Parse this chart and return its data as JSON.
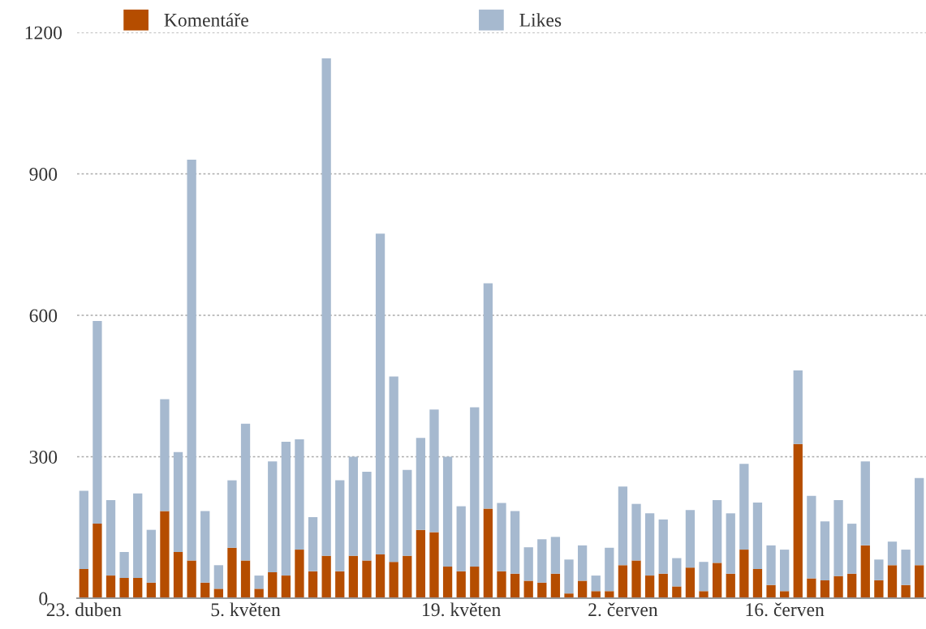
{
  "chart_data": {
    "type": "bar",
    "stacked": true,
    "categories": [
      "23. duben",
      null,
      null,
      null,
      null,
      null,
      null,
      null,
      null,
      null,
      null,
      null,
      "5. květen",
      null,
      null,
      null,
      null,
      null,
      null,
      null,
      null,
      null,
      null,
      null,
      null,
      null,
      null,
      null,
      "19. květen",
      null,
      null,
      null,
      null,
      null,
      null,
      null,
      null,
      null,
      null,
      null,
      "2. červen",
      null,
      null,
      null,
      null,
      null,
      null,
      null,
      null,
      null,
      null,
      null,
      "16. červen",
      null,
      null,
      null,
      null,
      null,
      null,
      null,
      null,
      null,
      null
    ],
    "series": [
      {
        "name": "Komentáře",
        "color": "#b54d00",
        "values": [
          62,
          158,
          48,
          43,
          43,
          33,
          185,
          98,
          80,
          33,
          20,
          107,
          80,
          20,
          55,
          48,
          103,
          57,
          90,
          57,
          90,
          80,
          93,
          77,
          90,
          145,
          140,
          67,
          57,
          67,
          190,
          57,
          52,
          37,
          33,
          52,
          10,
          37,
          15,
          15,
          70,
          80,
          48,
          52,
          25,
          65,
          15,
          75,
          52,
          103,
          62,
          28,
          15,
          327,
          42,
          38,
          47,
          52,
          112,
          38,
          70,
          28,
          70
        ]
      },
      {
        "name": "Likes",
        "color": "#a6b9cf",
        "values": [
          166,
          430,
          160,
          55,
          179,
          112,
          237,
          212,
          850,
          152,
          50,
          143,
          290,
          28,
          235,
          284,
          234,
          115,
          1055,
          193,
          210,
          188,
          680,
          393,
          182,
          195,
          260,
          233,
          138,
          338,
          478,
          145,
          133,
          71,
          92,
          78,
          72,
          75,
          33,
          92,
          167,
          120,
          132,
          115,
          60,
          122,
          62,
          133,
          128,
          182,
          141,
          84,
          88,
          156,
          175,
          125,
          161,
          106,
          178,
          44,
          50,
          75,
          185
        ]
      }
    ],
    "ylim": [
      0,
      1200
    ],
    "yticks": [
      0,
      300,
      600,
      900,
      1200
    ],
    "grid": "y",
    "legend": "top"
  }
}
